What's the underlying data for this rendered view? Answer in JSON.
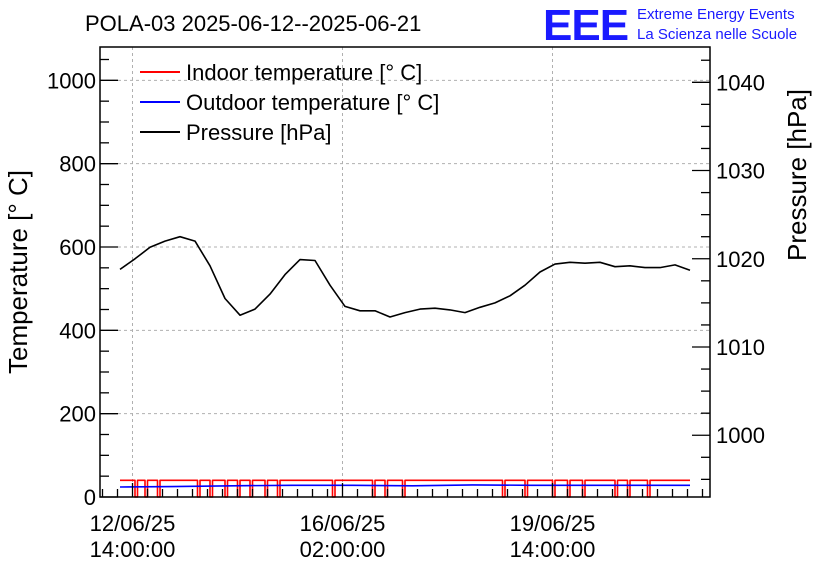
{
  "chart_data": {
    "type": "line",
    "title": "POLA-03 2025-06-12--2025-06-21",
    "ylabel": "Temperature [° C]",
    "y2label": "Pressure [hPa]",
    "xlabel": "",
    "x_range": [
      "2025-06-12 01:00",
      "2025-06-22 05:00"
    ],
    "ylim": [
      0,
      1080
    ],
    "y2lim": [
      993,
      1044
    ],
    "yticks": [
      0,
      200,
      400,
      600,
      800,
      1000
    ],
    "y2ticks": [
      1000,
      1010,
      1020,
      1030,
      1040
    ],
    "xticks": [
      {
        "x": "2025-06-12 14:00",
        "line1": "12/06/25",
        "line2": "14:00:00"
      },
      {
        "x": "2025-06-16 02:00",
        "line1": "16/06/25",
        "line2": "02:00:00"
      },
      {
        "x": "2025-06-19 14:00",
        "line1": "19/06/25",
        "line2": "14:00:00"
      }
    ],
    "grid": true,
    "legend_position": "top-left",
    "series": [
      {
        "name": "Indoor temperature [° C]",
        "axis": "left",
        "color": "#ff0000",
        "baseline": 40,
        "dropout_value": 0,
        "dropouts": [
          [
            "2025-06-12 15:00",
            "2025-06-12 16:00"
          ],
          [
            "2025-06-12 19:00",
            "2025-06-12 20:00"
          ],
          [
            "2025-06-13 00:00",
            "2025-06-13 01:00"
          ],
          [
            "2025-06-13 16:00",
            "2025-06-13 17:00"
          ],
          [
            "2025-06-13 21:00",
            "2025-06-13 22:00"
          ],
          [
            "2025-06-14 03:00",
            "2025-06-14 04:00"
          ],
          [
            "2025-06-14 08:00",
            "2025-06-14 09:00"
          ],
          [
            "2025-06-14 13:00",
            "2025-06-14 14:00"
          ],
          [
            "2025-06-14 19:00",
            "2025-06-14 20:00"
          ],
          [
            "2025-06-15 00:00",
            "2025-06-15 01:00"
          ],
          [
            "2025-06-15 22:00",
            "2025-06-15 23:00"
          ],
          [
            "2025-06-16 14:00",
            "2025-06-16 15:00"
          ],
          [
            "2025-06-16 19:00",
            "2025-06-16 20:00"
          ],
          [
            "2025-06-17 02:00",
            "2025-06-17 03:00"
          ],
          [
            "2025-06-18 18:00",
            "2025-06-18 19:00"
          ],
          [
            "2025-06-19 03:00",
            "2025-06-19 04:00"
          ],
          [
            "2025-06-19 14:00",
            "2025-06-19 15:00"
          ],
          [
            "2025-06-19 20:00",
            "2025-06-19 21:00"
          ],
          [
            "2025-06-20 02:00",
            "2025-06-20 03:00"
          ],
          [
            "2025-06-20 15:00",
            "2025-06-20 16:00"
          ],
          [
            "2025-06-20 20:00",
            "2025-06-20 21:00"
          ],
          [
            "2025-06-21 04:00",
            "2025-06-21 05:00"
          ]
        ]
      },
      {
        "name": "Outdoor temperature [° C]",
        "axis": "left",
        "color": "#0000ff",
        "x": [
          "2025-06-12 09:00",
          "2025-06-13 06:00",
          "2025-06-14 06:00",
          "2025-06-15 06:00",
          "2025-06-16 06:00",
          "2025-06-17 06:00",
          "2025-06-18 06:00",
          "2025-06-19 06:00",
          "2025-06-20 06:00",
          "2025-06-21 06:00",
          "2025-06-21 21:00"
        ],
        "y": [
          24,
          25,
          27,
          28,
          28,
          27,
          29,
          28,
          28,
          28,
          28
        ]
      },
      {
        "name": "Pressure [hPa]",
        "axis": "right",
        "color": "#000000",
        "x": [
          "2025-06-12 09:00",
          "2025-06-12 15:00",
          "2025-06-12 21:00",
          "2025-06-13 03:00",
          "2025-06-13 09:00",
          "2025-06-13 15:00",
          "2025-06-13 21:00",
          "2025-06-14 03:00",
          "2025-06-14 09:00",
          "2025-06-14 15:00",
          "2025-06-14 21:00",
          "2025-06-15 03:00",
          "2025-06-15 09:00",
          "2025-06-15 15:00",
          "2025-06-15 21:00",
          "2025-06-16 03:00",
          "2025-06-16 09:00",
          "2025-06-16 15:00",
          "2025-06-16 21:00",
          "2025-06-17 03:00",
          "2025-06-17 09:00",
          "2025-06-17 15:00",
          "2025-06-17 21:00",
          "2025-06-18 03:00",
          "2025-06-18 09:00",
          "2025-06-18 15:00",
          "2025-06-18 21:00",
          "2025-06-19 03:00",
          "2025-06-19 09:00",
          "2025-06-19 15:00",
          "2025-06-19 21:00",
          "2025-06-20 03:00",
          "2025-06-20 09:00",
          "2025-06-20 15:00",
          "2025-06-20 21:00",
          "2025-06-21 03:00",
          "2025-06-21 09:00",
          "2025-06-21 15:00",
          "2025-06-21 21:00"
        ],
        "y": [
          1018.8,
          1020.0,
          1021.3,
          1022.0,
          1022.5,
          1022.0,
          1019.2,
          1015.5,
          1013.6,
          1014.3,
          1016.0,
          1018.2,
          1019.9,
          1019.8,
          1017.0,
          1014.6,
          1014.1,
          1014.1,
          1013.4,
          1013.9,
          1014.3,
          1014.4,
          1014.2,
          1013.9,
          1014.5,
          1015.0,
          1015.8,
          1017.0,
          1018.5,
          1019.4,
          1019.6,
          1019.5,
          1019.6,
          1019.1,
          1019.2,
          1019.0,
          1019.0,
          1019.3,
          1018.7
        ]
      }
    ]
  },
  "logo": {
    "mark": "EEE",
    "line1": "Extreme Energy Events",
    "line2": "La Scienza nelle Scuole"
  }
}
